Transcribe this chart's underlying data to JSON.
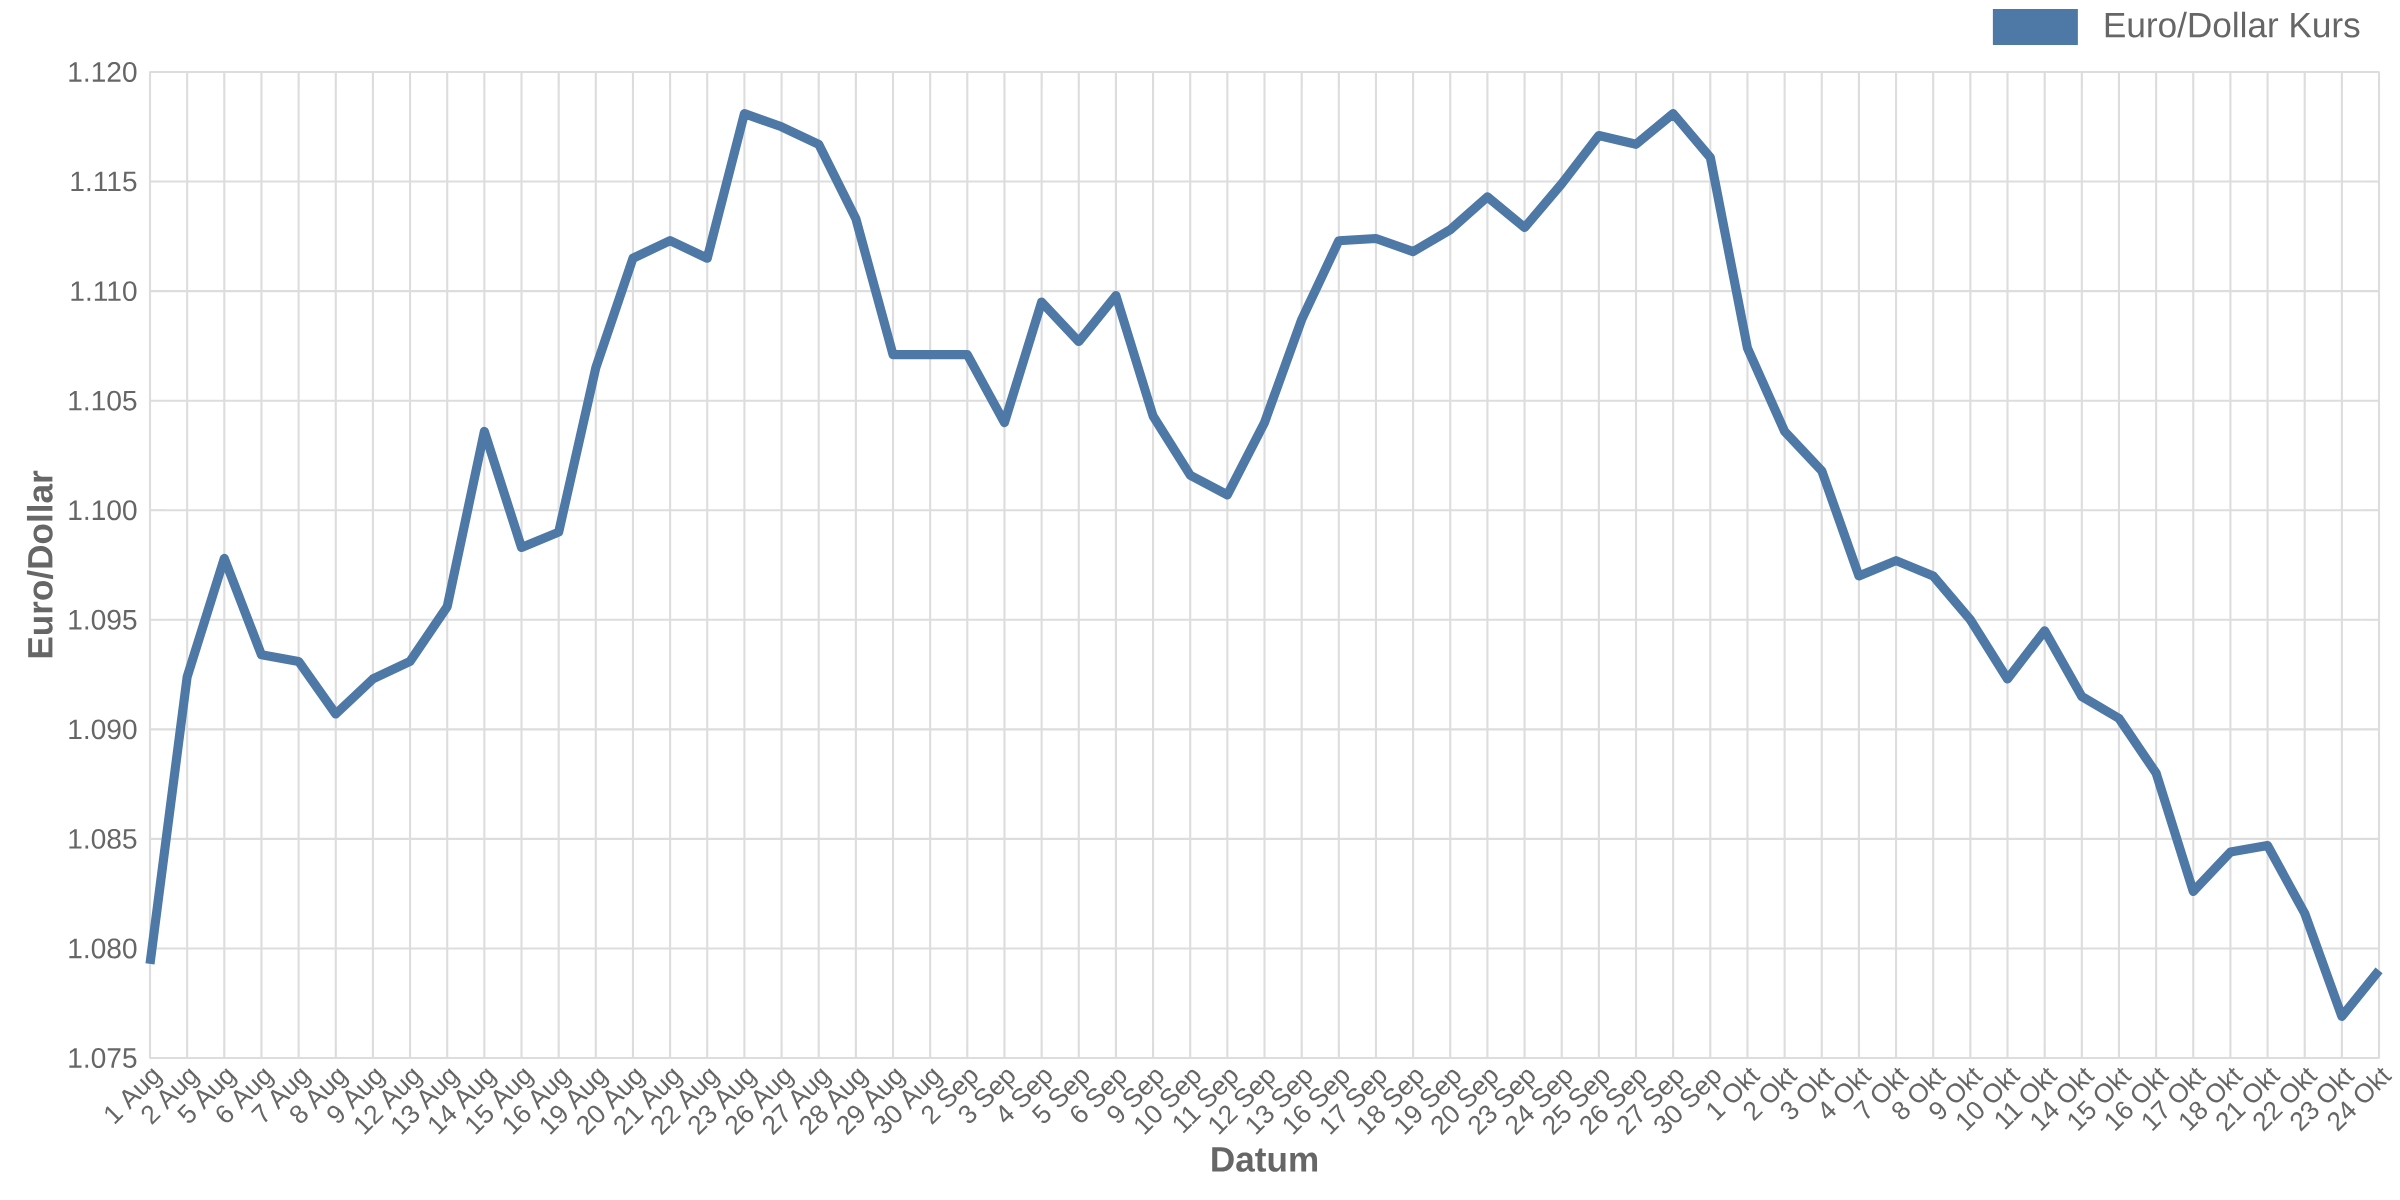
{
  "chart_data": {
    "type": "line",
    "xlabel": "Datum",
    "ylabel": "Euro/Dollar",
    "categories": [
      "1 Aug",
      "2 Aug",
      "5 Aug",
      "6 Aug",
      "7 Aug",
      "8 Aug",
      "9 Aug",
      "12 Aug",
      "13 Aug",
      "14 Aug",
      "15 Aug",
      "16 Aug",
      "19 Aug",
      "20 Aug",
      "21 Aug",
      "22 Aug",
      "23 Aug",
      "26 Aug",
      "27 Aug",
      "28 Aug",
      "29 Aug",
      "30 Aug",
      "2 Sep",
      "3 Sep",
      "4 Sep",
      "5 Sep",
      "6 Sep",
      "9 Sep",
      "10 Sep",
      "11 Sep",
      "12 Sep",
      "13 Sep",
      "16 Sep",
      "17 Sep",
      "18 Sep",
      "19 Sep",
      "20 Sep",
      "23 Sep",
      "24 Sep",
      "25 Sep",
      "26 Sep",
      "27 Sep",
      "30 Sep",
      "1 Okt",
      "2 Okt",
      "3 Okt",
      "4 Okt",
      "7 Okt",
      "8 Okt",
      "9 Okt",
      "10 Okt",
      "11 Okt",
      "14 Okt",
      "15 Okt",
      "16 Okt",
      "17 Okt",
      "18 Okt",
      "21 Okt",
      "22 Okt",
      "23 Okt",
      "24 Okt"
    ],
    "series": [
      {
        "name": "Euro/Dollar Kurs",
        "color": "#4e79a7",
        "values": [
          1.0793,
          1.0924,
          1.0978,
          1.0934,
          1.0931,
          1.0907,
          1.0923,
          1.0931,
          1.0956,
          1.1036,
          1.0983,
          1.099,
          1.1065,
          1.1115,
          1.1123,
          1.1115,
          1.1181,
          1.1175,
          1.1167,
          1.1133,
          1.1071,
          1.1071,
          1.1071,
          1.104,
          1.1095,
          1.1077,
          1.1098,
          1.1043,
          1.1016,
          1.1007,
          1.104,
          1.1087,
          1.1123,
          1.1124,
          1.1118,
          1.1128,
          1.1143,
          1.1129,
          1.1149,
          1.1171,
          1.1167,
          1.1181,
          1.1161,
          1.1074,
          1.1036,
          1.1018,
          1.097,
          1.0977,
          1.097,
          1.095,
          1.0923,
          1.0945,
          1.0915,
          1.0905,
          1.088,
          1.0826,
          1.0844,
          1.0847,
          1.0816,
          1.0769,
          1.079
        ]
      }
    ],
    "ylim": [
      1.075,
      1.12
    ],
    "yticks": [
      {
        "value": 1.075,
        "label": "1.075"
      },
      {
        "value": 1.08,
        "label": "1.080"
      },
      {
        "value": 1.085,
        "label": "1.085"
      },
      {
        "value": 1.09,
        "label": "1.090"
      },
      {
        "value": 1.095,
        "label": "1.095"
      },
      {
        "value": 1.1,
        "label": "1.100"
      },
      {
        "value": 1.105,
        "label": "1.105"
      },
      {
        "value": 1.11,
        "label": "1.110"
      },
      {
        "value": 1.115,
        "label": "1.115"
      },
      {
        "value": 1.12,
        "label": "1.120"
      }
    ],
    "grid": true,
    "legend": "top right",
    "marker": "none",
    "line_style": "solid"
  }
}
